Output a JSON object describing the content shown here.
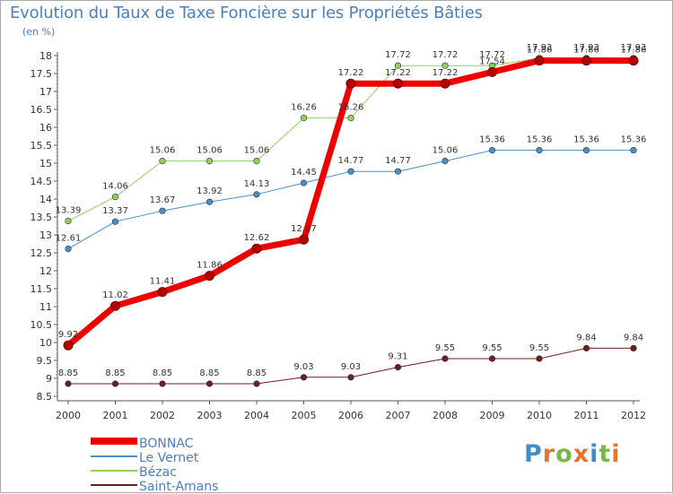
{
  "header": {
    "title": "Evolution du Taux de Taxe Foncière sur les Propriétés Bâties",
    "subtitle": "(en %)"
  },
  "logo": {
    "text": "Proxiti",
    "letters": [
      "P",
      "r",
      "o",
      "x",
      "i",
      "t",
      "i"
    ],
    "colors": [
      "#3f8ec7",
      "#e8742c",
      "#7ab648",
      "#e8742c",
      "#3f8ec7",
      "#7ab648",
      "#e8742c"
    ]
  },
  "chart_data": {
    "type": "line",
    "title": "Evolution du Taux de Taxe Foncière sur les Propriétés Bâties",
    "ylabel": "(en %)",
    "xlabel": "",
    "ylim": [
      8.5,
      18
    ],
    "yticks": [
      "8.5",
      "9",
      "9.5",
      "10",
      "10.5",
      "11",
      "11.5",
      "12",
      "12.5",
      "13",
      "13.5",
      "14",
      "14.5",
      "15",
      "15.5",
      "16",
      "16.5",
      "17",
      "17.5",
      "18"
    ],
    "categories": [
      "2000",
      "2001",
      "2002",
      "2003",
      "2004",
      "2005",
      "2006",
      "2007",
      "2008",
      "2009",
      "2010",
      "2011",
      "2012"
    ],
    "grid": false,
    "legend_position": "bottom-left",
    "series": [
      {
        "name": "Saint-Amans",
        "color": "#6b1f1f",
        "width": 1,
        "values": [
          8.85,
          8.85,
          8.85,
          8.85,
          8.85,
          9.03,
          9.03,
          9.31,
          9.55,
          9.55,
          9.55,
          9.84,
          9.84
        ],
        "labels": [
          "8.85",
          "8.85",
          "8.85",
          "8.85",
          "8.85",
          "9.03",
          "9.03",
          "9.31",
          "9.55",
          "9.55",
          "9.55",
          "9.84",
          "9.84"
        ]
      },
      {
        "name": "Le Vernet",
        "color": "#4a8fc9",
        "width": 1,
        "values": [
          12.61,
          13.37,
          13.67,
          13.92,
          14.13,
          14.45,
          14.77,
          14.77,
          15.06,
          15.36,
          15.36,
          15.36,
          15.36
        ],
        "labels": [
          "12.61",
          "13.37",
          "13.67",
          "13.92",
          "14.13",
          "14.45",
          "14.77",
          "14.77",
          "15.06",
          "15.36",
          "15.36",
          "15.36",
          "15.36"
        ]
      },
      {
        "name": "Bézac",
        "color": "#8fd15a",
        "width": 1,
        "values": [
          13.39,
          14.06,
          15.06,
          15.06,
          15.06,
          16.26,
          16.26,
          17.72,
          17.72,
          17.72,
          17.93,
          17.93,
          17.93
        ],
        "labels": [
          "13.39",
          "14.06",
          "15.06",
          "15.06",
          "15.06",
          "16.26",
          "16.26",
          "17.72",
          "17.72",
          "17.72",
          "17.93",
          "17.93",
          "17.93"
        ]
      },
      {
        "name": "BONNAC",
        "color": "#ee0000",
        "width": 7,
        "values": [
          9.92,
          11.02,
          11.41,
          11.86,
          12.62,
          12.87,
          17.22,
          17.22,
          17.22,
          17.54,
          17.86,
          17.86,
          17.86
        ],
        "labels": [
          "9.92",
          "11.02",
          "11.41",
          "11.86",
          "12.62",
          "12.87",
          "17.22",
          "17.22",
          "17.22",
          "17.54",
          "17.86",
          "17.86",
          "17.86"
        ]
      }
    ],
    "legend": [
      "BONNAC",
      "Le Vernet",
      "Bézac",
      "Saint-Amans"
    ]
  }
}
